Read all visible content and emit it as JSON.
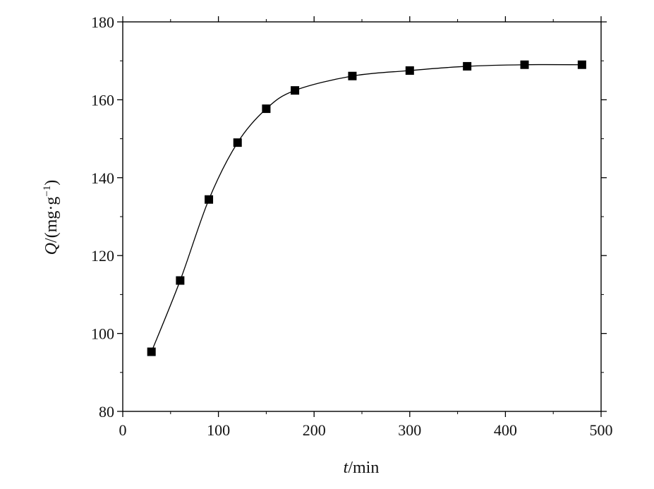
{
  "chart_data": {
    "type": "line",
    "title": "",
    "xlabel_italic": "t",
    "xlabel_rest": "/min",
    "ylabel_italic": "Q",
    "ylabel_rest": "/(mg·g",
    "ylabel_sup": "−1",
    "ylabel_close": ")",
    "xlim": [
      0,
      500
    ],
    "ylim": [
      80,
      180
    ],
    "x_ticks": [
      0,
      100,
      200,
      300,
      400,
      500
    ],
    "y_ticks": [
      80,
      100,
      120,
      140,
      160,
      180
    ],
    "grid": false,
    "series": [
      {
        "marker": "square",
        "line": "smooth",
        "color": "#000000",
        "x": [
          30,
          60,
          90,
          120,
          150,
          180,
          240,
          300,
          360,
          420,
          480
        ],
        "y": [
          95.3,
          113.6,
          134.4,
          149.0,
          157.7,
          162.4,
          166.1,
          167.5,
          168.6,
          169.0,
          169.0
        ]
      }
    ]
  }
}
